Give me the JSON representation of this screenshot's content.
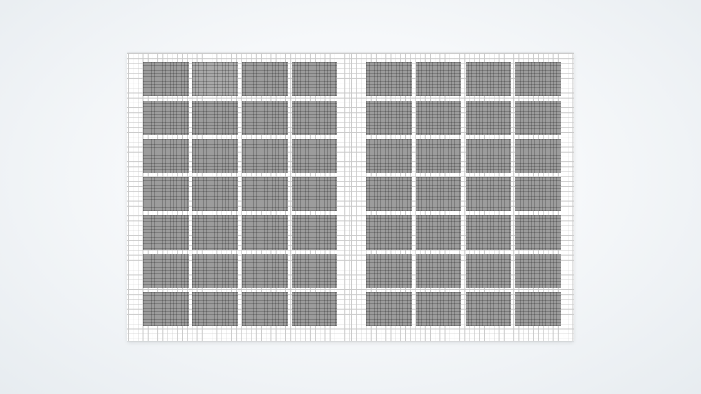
{
  "spread": {
    "pages": [
      {
        "name": "left-page",
        "columns": 4,
        "rows": 7,
        "highlighted_cell": {
          "row": 0,
          "col": 1
        }
      },
      {
        "name": "right-page",
        "columns": 4,
        "rows": 7
      }
    ]
  },
  "colors": {
    "cell_fill": "#9c9c9c",
    "highlighted_cell_fill": "#a9a9a9",
    "grid_line": "#c9c9c9",
    "page_background": "#ffffff"
  }
}
